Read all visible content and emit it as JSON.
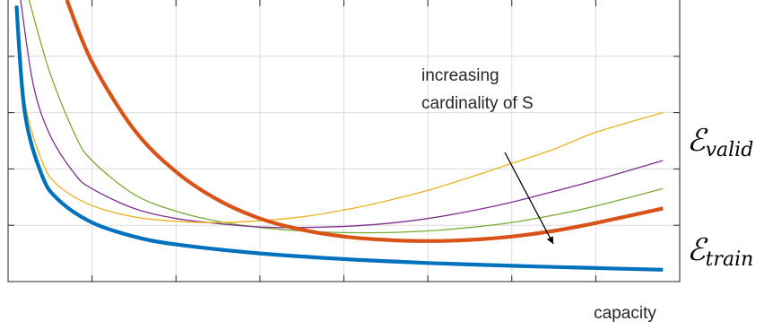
{
  "chart_data": {
    "type": "line",
    "xlabel": "capacity",
    "ylabel": "",
    "xlim": [
      0,
      8
    ],
    "ylim": [
      0,
      5
    ],
    "grid": true,
    "annotation": "increasing\ncardinality of S",
    "labels": {
      "valid": {
        "base": "ℰ",
        "sub": "valid"
      },
      "train": {
        "base": "ℰ",
        "sub": "train"
      }
    },
    "series": [
      {
        "role": "train",
        "color": "#0072bd",
        "width": 4.2,
        "x": [
          0.1,
          0.2,
          0.4,
          0.6,
          1,
          1.5,
          2,
          3,
          4,
          5,
          6,
          7,
          7.8
        ],
        "y": [
          4.9,
          3.0,
          1.9,
          1.45,
          1.05,
          0.8,
          0.66,
          0.5,
          0.4,
          0.33,
          0.28,
          0.24,
          0.21
        ]
      },
      {
        "role": "valid",
        "color": "#d95319",
        "width": 4.2,
        "x": [
          0.7,
          1,
          1.5,
          2,
          2.5,
          3,
          3.5,
          4,
          4.5,
          5,
          5.5,
          6,
          6.5,
          7,
          7.8
        ],
        "y": [
          5.0,
          3.9,
          2.7,
          1.95,
          1.45,
          1.12,
          0.92,
          0.8,
          0.74,
          0.72,
          0.74,
          0.8,
          0.9,
          1.04,
          1.3
        ]
      },
      {
        "role": "valid",
        "color": "#77ac30",
        "width": 1.3,
        "x": [
          0.25,
          0.5,
          0.8,
          1,
          1.5,
          2,
          2.5,
          3,
          3.5,
          4,
          4.5,
          5,
          5.5,
          6,
          6.5,
          7,
          7.8
        ],
        "y": [
          5.0,
          3.7,
          2.6,
          2.15,
          1.55,
          1.25,
          1.07,
          0.96,
          0.9,
          0.87,
          0.87,
          0.9,
          0.96,
          1.05,
          1.18,
          1.34,
          1.65
        ]
      },
      {
        "role": "valid",
        "color": "#7e2f8e",
        "width": 1.3,
        "x": [
          0.15,
          0.3,
          0.5,
          0.8,
          1,
          1.5,
          2,
          2.5,
          3,
          3.5,
          4,
          4.5,
          5,
          5.5,
          6,
          6.5,
          7,
          7.8
        ],
        "y": [
          5.0,
          3.5,
          2.6,
          1.9,
          1.65,
          1.3,
          1.12,
          1.03,
          0.97,
          0.96,
          0.98,
          1.03,
          1.12,
          1.25,
          1.41,
          1.6,
          1.8,
          2.15
        ]
      },
      {
        "role": "valid",
        "color": "#edb120",
        "width": 1.3,
        "x": [
          0.1,
          0.2,
          0.4,
          0.6,
          1,
          1.5,
          2,
          2.5,
          3,
          3.5,
          4,
          4.5,
          5,
          5.5,
          6,
          6.5,
          7,
          7.8
        ],
        "y": [
          4.9,
          3.2,
          2.15,
          1.7,
          1.35,
          1.15,
          1.07,
          1.05,
          1.08,
          1.15,
          1.27,
          1.43,
          1.62,
          1.85,
          2.1,
          2.35,
          2.65,
          3.0
        ]
      }
    ]
  }
}
